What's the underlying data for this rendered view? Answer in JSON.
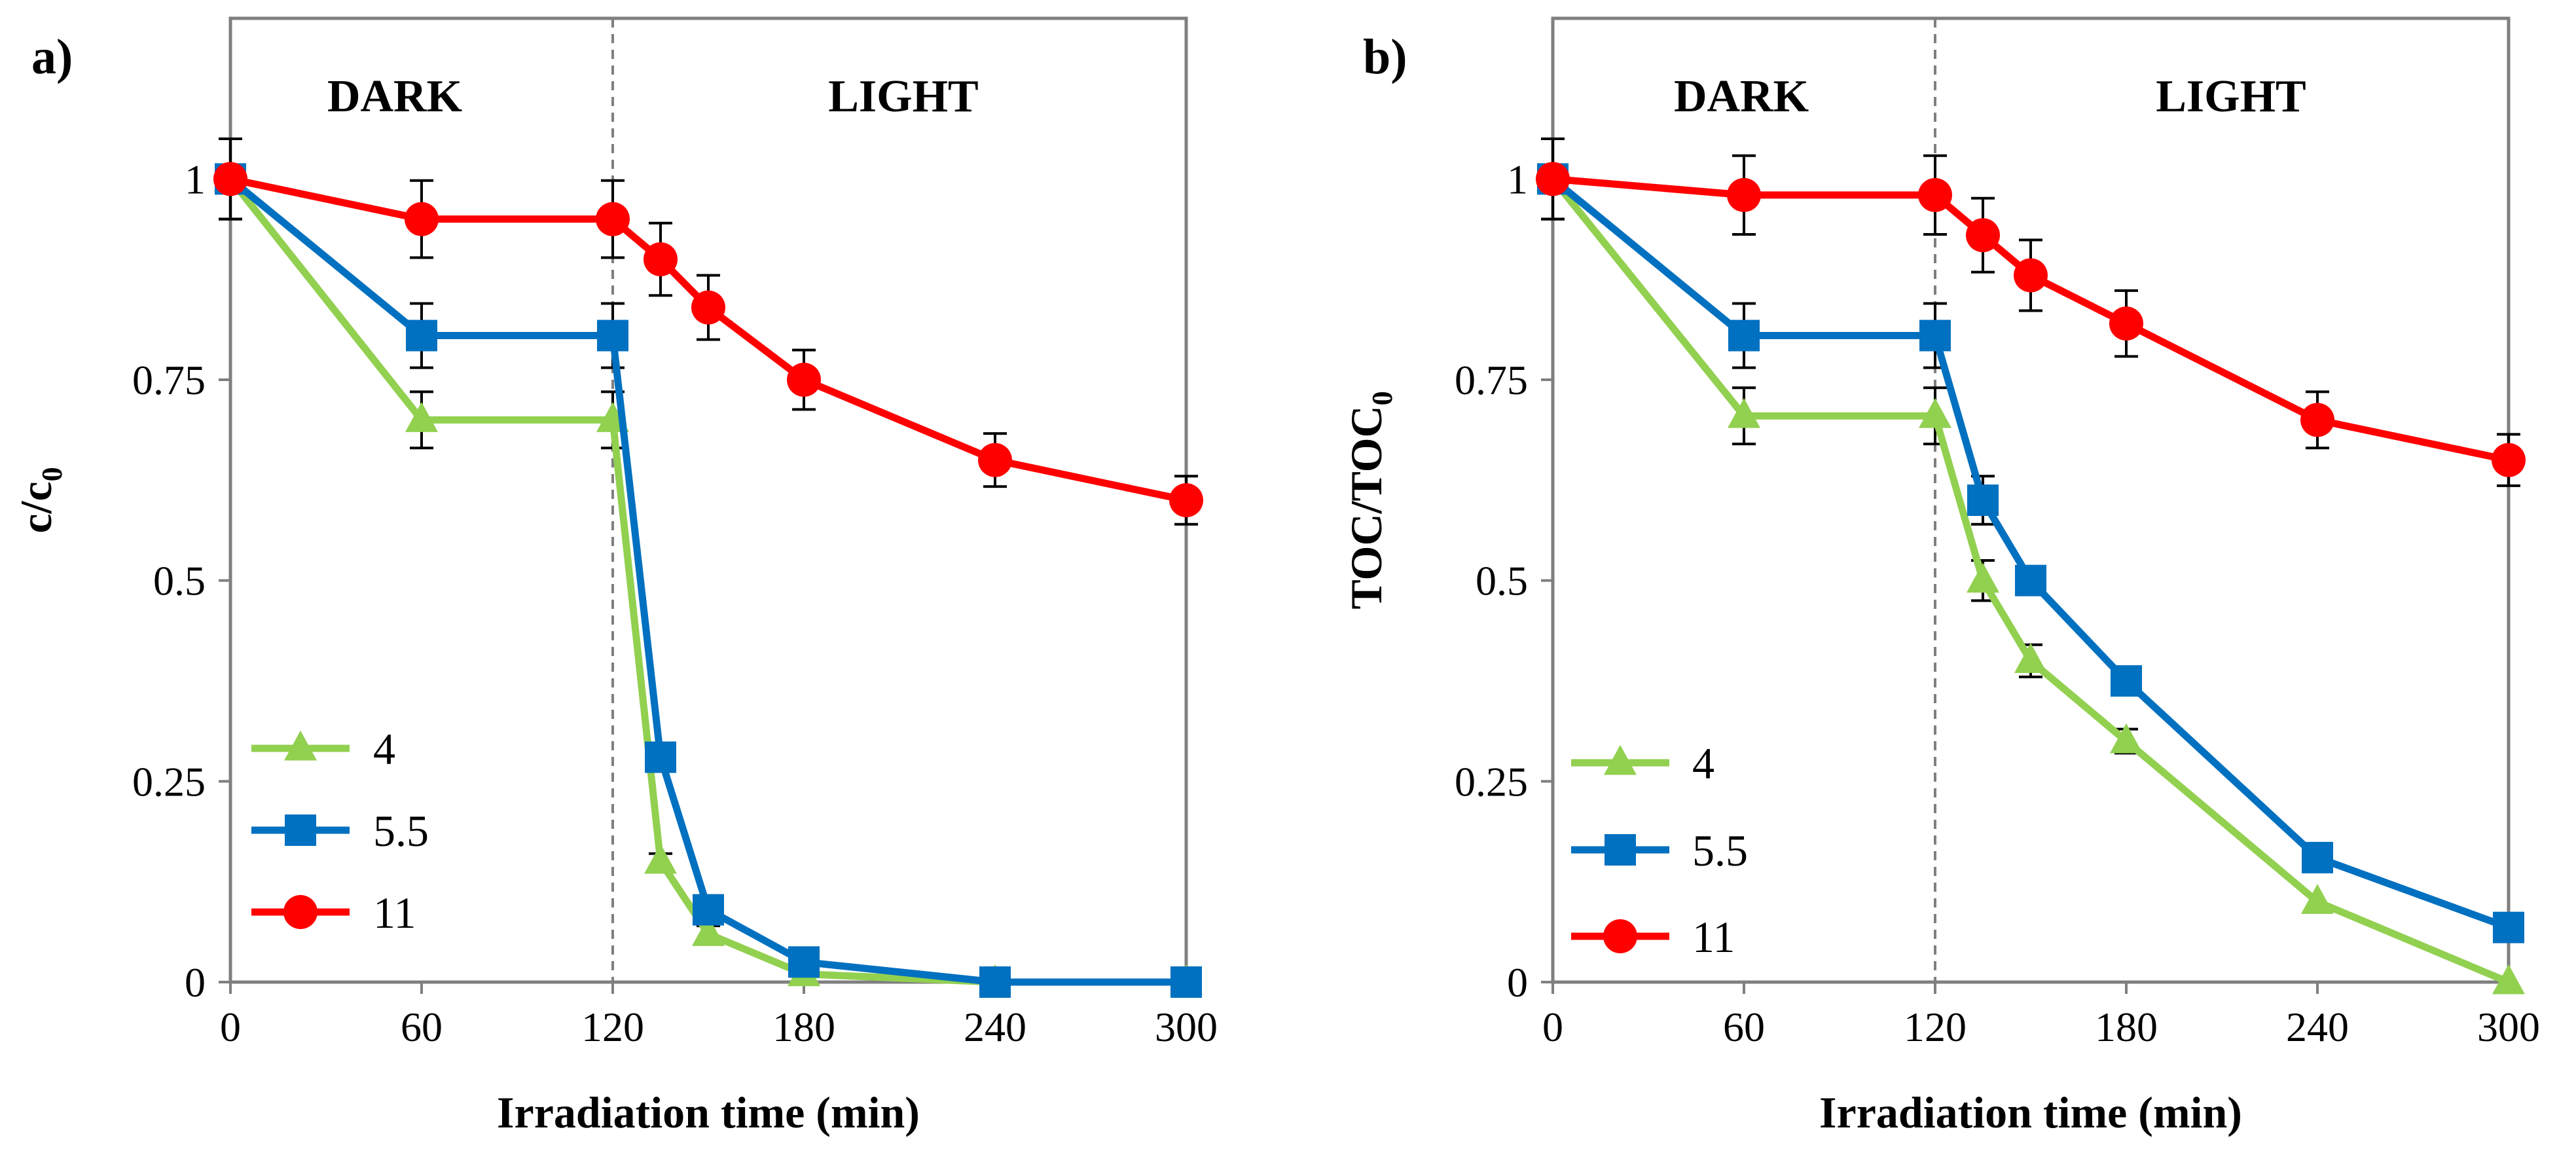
{
  "figure": {
    "x_title": "Irradiation time (min)",
    "region_labels": {
      "dark": "DARK",
      "light": "LIGHT"
    }
  },
  "chart_data": [
    {
      "type": "line",
      "panel": "a)",
      "ylabel": {
        "main": "c/c",
        "sub": "0"
      },
      "xlabel": "Irradiation time (min)",
      "xlim": [
        0,
        300
      ],
      "ylim": [
        0,
        1.2
      ],
      "xticks": [
        0,
        60,
        120,
        180,
        240,
        300
      ],
      "yticks": [
        0,
        0.25,
        0.5,
        0.75,
        1
      ],
      "ytick_labels": [
        "0",
        "0.25",
        "0.5",
        "0.75",
        "1"
      ],
      "divider_x": 120,
      "grid": false,
      "legend_position": "bottom-left",
      "series": [
        {
          "name": "4",
          "color": "#92d050",
          "marker": "triangle",
          "x": [
            0,
            60,
            120,
            135,
            150,
            180,
            240,
            300
          ],
          "y": [
            1,
            0.7,
            0.7,
            0.15,
            0.06,
            0.01,
            0.0,
            0.0
          ],
          "err": [
            0.05,
            0.035,
            0.035,
            0.01,
            0.01,
            0.01,
            0.0,
            0.0
          ]
        },
        {
          "name": "5.5",
          "color": "#0070c0",
          "marker": "square",
          "x": [
            0,
            60,
            120,
            135,
            150,
            180,
            240,
            300
          ],
          "y": [
            1,
            0.805,
            0.805,
            0.28,
            0.09,
            0.025,
            0.0,
            0.0
          ],
          "err": [
            0.05,
            0.04,
            0.04,
            0.0,
            0.0,
            0.0,
            0.0,
            0.0
          ]
        },
        {
          "name": "11",
          "color": "#ff0000",
          "marker": "circle",
          "x": [
            0,
            60,
            120,
            135,
            150,
            180,
            240,
            300
          ],
          "y": [
            1,
            0.95,
            0.95,
            0.9,
            0.84,
            0.75,
            0.65,
            0.6
          ],
          "err": [
            0.05,
            0.048,
            0.048,
            0.045,
            0.04,
            0.037,
            0.033,
            0.03
          ]
        }
      ]
    },
    {
      "type": "line",
      "panel": "b)",
      "ylabel": {
        "main": "TOC/TOC",
        "sub": "0"
      },
      "xlabel": "Irradiation time (min)",
      "xlim": [
        0,
        300
      ],
      "ylim": [
        0,
        1.2
      ],
      "xticks": [
        0,
        60,
        120,
        180,
        240,
        300
      ],
      "yticks": [
        0,
        0.25,
        0.5,
        0.75,
        1
      ],
      "ytick_labels": [
        "0",
        "0.25",
        "0.5",
        "0.75",
        "1"
      ],
      "divider_x": 120,
      "grid": false,
      "legend_position": "bottom-left",
      "series": [
        {
          "name": "4",
          "color": "#92d050",
          "marker": "triangle",
          "x": [
            0,
            60,
            120,
            135,
            150,
            180,
            240,
            300
          ],
          "y": [
            1,
            0.705,
            0.705,
            0.5,
            0.4,
            0.3,
            0.1,
            0.0
          ],
          "err": [
            0.05,
            0.035,
            0.035,
            0.025,
            0.02,
            0.015,
            0.0,
            0.0
          ]
        },
        {
          "name": "5.5",
          "color": "#0070c0",
          "marker": "square",
          "x": [
            0,
            60,
            120,
            135,
            150,
            180,
            240,
            300
          ],
          "y": [
            1,
            0.805,
            0.805,
            0.6,
            0.5,
            0.375,
            0.155,
            0.068
          ],
          "err": [
            0.05,
            0.04,
            0.04,
            0.03,
            0.0,
            0.0,
            0.0,
            0.0
          ]
        },
        {
          "name": "11",
          "color": "#ff0000",
          "marker": "circle",
          "x": [
            0,
            60,
            120,
            135,
            150,
            180,
            240,
            300
          ],
          "y": [
            1,
            0.98,
            0.98,
            0.93,
            0.88,
            0.82,
            0.7,
            0.65
          ],
          "err": [
            0.05,
            0.049,
            0.049,
            0.046,
            0.044,
            0.041,
            0.035,
            0.032
          ]
        }
      ]
    }
  ]
}
